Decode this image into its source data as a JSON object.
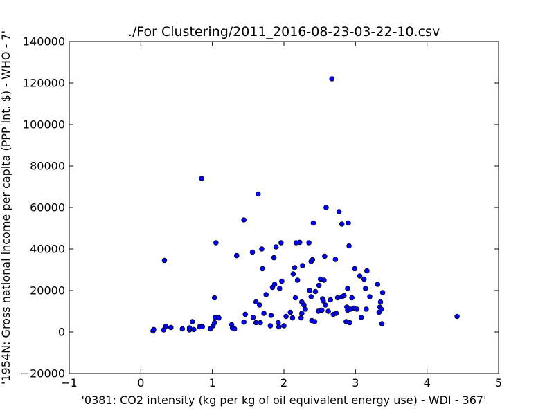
{
  "chart_data": {
    "type": "scatter",
    "title": "./For Clustering/2011_2016-08-23-03-22-10.csv",
    "xlabel": "'0381: CO2 intensity  (kg per kg of oil equivalent energy use) - WDI - 367'",
    "ylabel": "'1954N: Gross national income per capita (PPP int. $) - WHO - 7'",
    "xlim": [
      -1,
      5
    ],
    "ylim": [
      -20000,
      140000
    ],
    "xticks": [
      "−1",
      "0",
      "1",
      "2",
      "3",
      "4",
      "5"
    ],
    "yticks": [
      "−20000",
      "0",
      "20000",
      "40000",
      "60000",
      "80000",
      "100000",
      "120000",
      "140000"
    ],
    "grid": false,
    "marker_color": "#0000ff",
    "points": [
      [
        0.17,
        500
      ],
      [
        0.18,
        1200
      ],
      [
        0.32,
        1000
      ],
      [
        0.35,
        2800
      ],
      [
        0.42,
        2200
      ],
      [
        0.33,
        34500
      ],
      [
        0.58,
        1500
      ],
      [
        0.68,
        1000
      ],
      [
        0.72,
        5000
      ],
      [
        0.68,
        2000
      ],
      [
        0.74,
        1200
      ],
      [
        0.82,
        2500
      ],
      [
        0.86,
        2600
      ],
      [
        0.85,
        74000
      ],
      [
        0.97,
        1500
      ],
      [
        1.01,
        3000
      ],
      [
        1.03,
        4500
      ],
      [
        1.04,
        7000
      ],
      [
        1.03,
        16500
      ],
      [
        1.05,
        43000
      ],
      [
        1.09,
        6800
      ],
      [
        1.27,
        3500
      ],
      [
        1.28,
        2000
      ],
      [
        1.31,
        1500
      ],
      [
        1.34,
        36800
      ],
      [
        1.44,
        54000
      ],
      [
        1.44,
        4800
      ],
      [
        1.46,
        8500
      ],
      [
        1.56,
        38500
      ],
      [
        1.57,
        7000
      ],
      [
        1.61,
        14500
      ],
      [
        1.61,
        4500
      ],
      [
        1.64,
        66500
      ],
      [
        1.66,
        13000
      ],
      [
        1.67,
        4500
      ],
      [
        1.69,
        40000
      ],
      [
        1.7,
        30500
      ],
      [
        1.72,
        9000
      ],
      [
        1.75,
        18000
      ],
      [
        1.81,
        3000
      ],
      [
        1.82,
        8000
      ],
      [
        1.84,
        21500
      ],
      [
        1.86,
        35800
      ],
      [
        1.87,
        23000
      ],
      [
        1.89,
        41000
      ],
      [
        1.92,
        4500
      ],
      [
        1.93,
        2500
      ],
      [
        1.94,
        21000
      ],
      [
        1.96,
        43000
      ],
      [
        1.97,
        24500
      ],
      [
        2.0,
        3000
      ],
      [
        2.03,
        7500
      ],
      [
        2.09,
        9500
      ],
      [
        2.12,
        6800
      ],
      [
        2.13,
        28000
      ],
      [
        2.15,
        31000
      ],
      [
        2.16,
        16500
      ],
      [
        2.17,
        43000
      ],
      [
        2.19,
        25000
      ],
      [
        2.22,
        43200
      ],
      [
        2.24,
        6800
      ],
      [
        2.25,
        9000
      ],
      [
        2.25,
        14500
      ],
      [
        2.26,
        32000
      ],
      [
        2.28,
        13000
      ],
      [
        2.3,
        11000
      ],
      [
        2.35,
        43000
      ],
      [
        2.36,
        20000
      ],
      [
        2.38,
        17000
      ],
      [
        2.38,
        34000
      ],
      [
        2.39,
        5500
      ],
      [
        2.4,
        34800
      ],
      [
        2.41,
        52500
      ],
      [
        2.43,
        5000
      ],
      [
        2.44,
        19500
      ],
      [
        2.48,
        10000
      ],
      [
        2.49,
        22500
      ],
      [
        2.51,
        25500
      ],
      [
        2.52,
        10500
      ],
      [
        2.53,
        10500
      ],
      [
        2.54,
        16000
      ],
      [
        2.55,
        15000
      ],
      [
        2.56,
        25000
      ],
      [
        2.57,
        36500
      ],
      [
        2.58,
        13000
      ],
      [
        2.59,
        60000
      ],
      [
        2.62,
        10000
      ],
      [
        2.65,
        15500
      ],
      [
        2.67,
        122000
      ],
      [
        2.69,
        8500
      ],
      [
        2.72,
        35000
      ],
      [
        2.73,
        9000
      ],
      [
        2.75,
        16500
      ],
      [
        2.77,
        58000
      ],
      [
        2.81,
        17000
      ],
      [
        2.81,
        52000
      ],
      [
        2.84,
        17500
      ],
      [
        2.87,
        5000
      ],
      [
        2.88,
        12000
      ],
      [
        2.89,
        10500
      ],
      [
        2.89,
        21000
      ],
      [
        2.9,
        52500
      ],
      [
        2.91,
        41500
      ],
      [
        2.92,
        4500
      ],
      [
        2.93,
        11000
      ],
      [
        2.95,
        16500
      ],
      [
        2.98,
        11500
      ],
      [
        2.99,
        30500
      ],
      [
        3.02,
        11000
      ],
      [
        3.06,
        27000
      ],
      [
        3.08,
        7000
      ],
      [
        3.12,
        25500
      ],
      [
        3.14,
        21000
      ],
      [
        3.15,
        11000
      ],
      [
        3.16,
        29500
      ],
      [
        3.2,
        17000
      ],
      [
        3.31,
        23000
      ],
      [
        3.33,
        9500
      ],
      [
        3.34,
        12000
      ],
      [
        3.35,
        14500
      ],
      [
        3.36,
        11000
      ],
      [
        3.37,
        4000
      ],
      [
        3.38,
        19000
      ],
      [
        4.42,
        7500
      ]
    ]
  }
}
